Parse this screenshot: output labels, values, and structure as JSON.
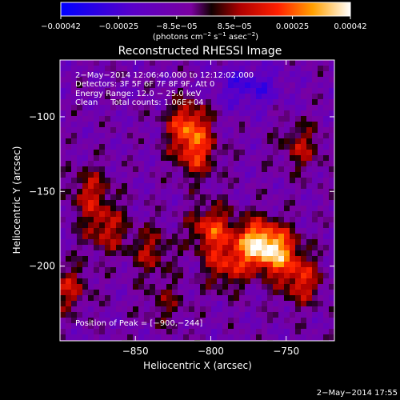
{
  "chart_data": {
    "type": "heatmap",
    "title": "Reconstructed RHESSI Image",
    "xlabel": "Heliocentric X (arcsec)",
    "ylabel": "Heliocentric Y (arcsec)",
    "x_ticks": [
      {
        "label": "−850",
        "value": -850
      },
      {
        "label": "−800",
        "value": -800
      },
      {
        "label": "−750",
        "value": -750
      }
    ],
    "y_ticks": [
      {
        "label": "−100",
        "value": -100
      },
      {
        "label": "−150",
        "value": -150
      },
      {
        "label": "−200",
        "value": -200
      }
    ],
    "xlim": [
      -900,
      -718
    ],
    "ylim": [
      -250,
      -62
    ],
    "colorbar": {
      "ticks": [
        "−0.00042",
        "−0.00025",
        "−8.5e−05",
        "8.5e−05",
        "0.00025",
        "0.00042"
      ],
      "range": [
        -0.00042,
        0.00042
      ],
      "unit_parts": [
        "(photons cm",
        "−2",
        " s",
        "−1",
        " asec",
        "−2",
        ")"
      ]
    },
    "annotations": [
      "2−May−2014 12:06:40.000 to 12:12:02.000",
      "Detectors: 3F 5F 6F 7F 8F 9F, Att 0",
      "Energy Range: 12.0 − 25.0 keV",
      "Clean     Total counts: 1.06E+04"
    ],
    "peak_text": "Position of Peak = [−900,−244]",
    "grid": false,
    "emission_sources": [
      {
        "x": -815,
        "y": -105,
        "intensity": 0.0003
      },
      {
        "x": -810,
        "y": -125,
        "intensity": 0.00025
      },
      {
        "x": -880,
        "y": -150,
        "intensity": 0.0002
      },
      {
        "x": -870,
        "y": -175,
        "intensity": 0.00022
      },
      {
        "x": -800,
        "y": -175,
        "intensity": 0.00028
      },
      {
        "x": -770,
        "y": -185,
        "intensity": 0.0004
      },
      {
        "x": -755,
        "y": -190,
        "intensity": 0.00032
      },
      {
        "x": -790,
        "y": -200,
        "intensity": 0.00022
      },
      {
        "x": -740,
        "y": -210,
        "intensity": 0.00024
      },
      {
        "x": -840,
        "y": -190,
        "intensity": 0.00018
      },
      {
        "x": -830,
        "y": -225,
        "intensity": 0.00012
      },
      {
        "x": -895,
        "y": -215,
        "intensity": 0.0002
      },
      {
        "x": -740,
        "y": -120,
        "intensity": 0.00018
      }
    ]
  },
  "footer": {
    "date": "2−May−2014 17:55"
  }
}
